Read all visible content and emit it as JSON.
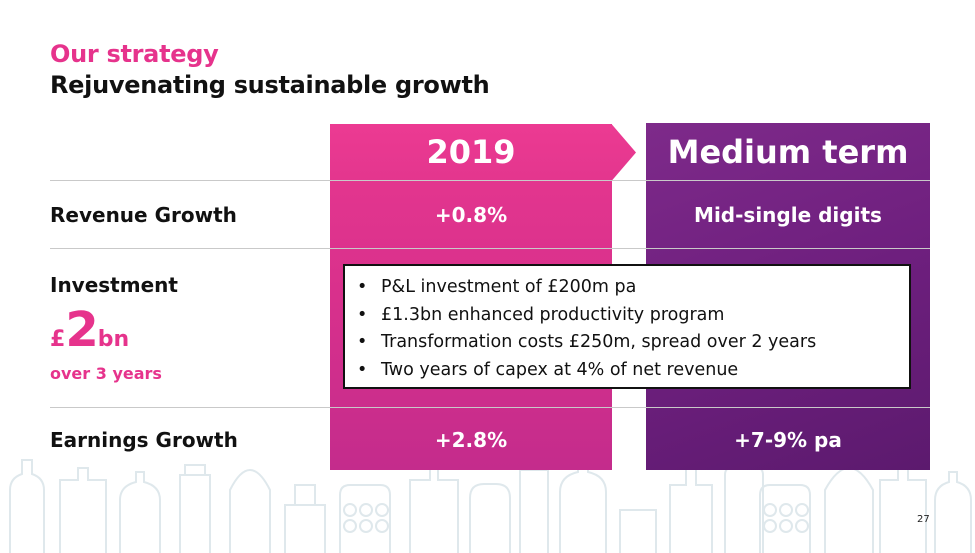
{
  "header": {
    "title": "Our strategy",
    "subtitle": "Rejuvenating sustainable growth"
  },
  "columns": {
    "col_2019": "2019",
    "col_medium": "Medium term"
  },
  "rows": {
    "revenue": {
      "label": "Revenue Growth",
      "v2019": "+0.8%",
      "vmedium": "Mid-single digits"
    },
    "investment": {
      "label": "Investment",
      "currency": "£",
      "amount": "2",
      "unit": "bn",
      "period": "over 3 years",
      "bullets": [
        "P&L investment of £200m pa",
        "£1.3bn enhanced productivity program",
        "Transformation costs £250m, spread over 2 years",
        "Two years of capex at 4% of net revenue"
      ]
    },
    "earnings": {
      "label": "Earnings Growth",
      "v2019": "+2.8%",
      "vmedium": "+7-9% pa"
    }
  },
  "page_number": "27",
  "colors": {
    "accent_pink": "#e6338c",
    "accent_purple": "#6e1f7e",
    "pattern": "#e3ecef"
  },
  "icons": {
    "background": "product-bottles-pattern"
  }
}
